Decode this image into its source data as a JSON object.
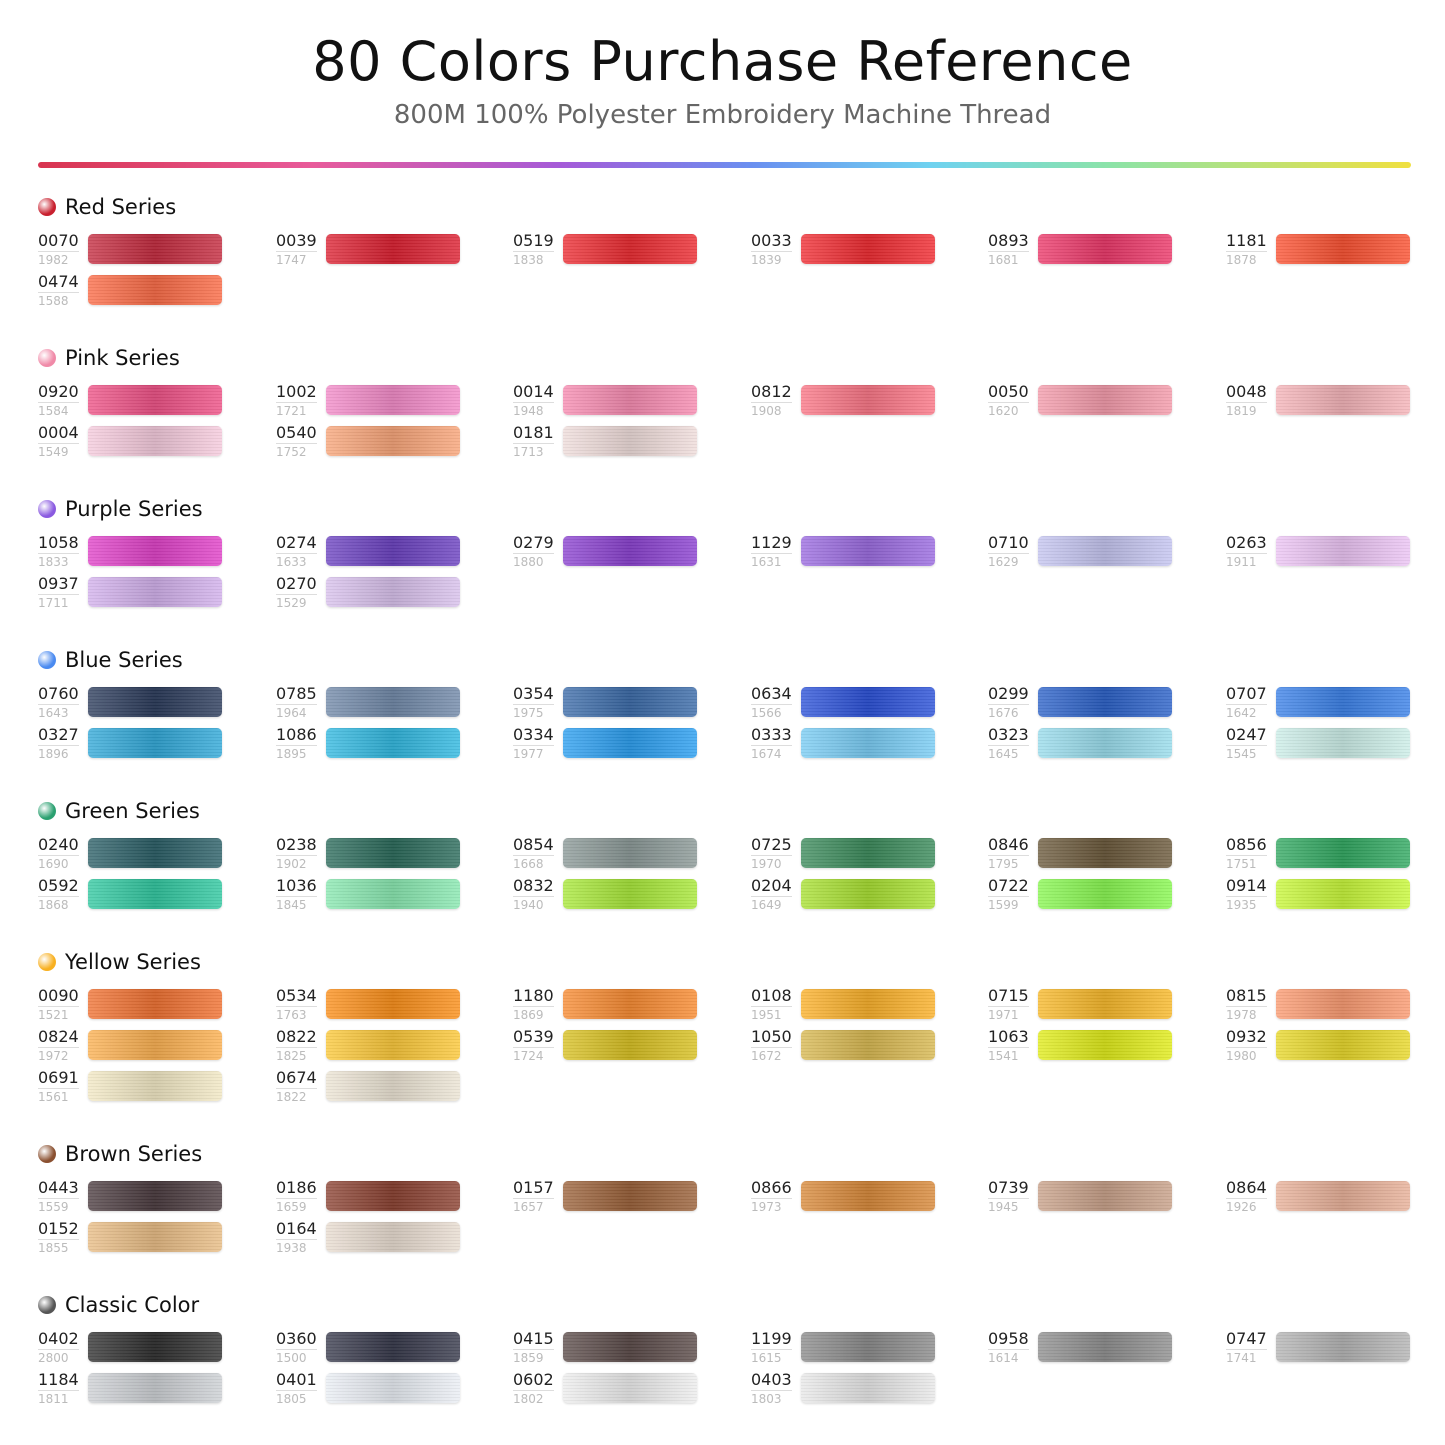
{
  "header": {
    "title": "80 Colors Purchase Reference",
    "subtitle": "800M 100% Polyester Embroidery Machine Thread"
  },
  "sections": [
    {
      "title": "Red Series",
      "dot_color": "#c8202f",
      "columns": [
        [
          {
            "code": "0070",
            "sub": "1982",
            "color": "#c42a3e"
          },
          {
            "code": "0474",
            "sub": "1588",
            "color": "#fb6a45"
          }
        ],
        [
          {
            "code": "0039",
            "sub": "1747",
            "color": "#dc1f30"
          }
        ],
        [
          {
            "code": "0519",
            "sub": "1838",
            "color": "#ec2a30"
          }
        ],
        [
          {
            "code": "0033",
            "sub": "1839",
            "color": "#f02a30"
          }
        ],
        [
          {
            "code": "0893",
            "sub": "1681",
            "color": "#ec3668"
          }
        ],
        [
          {
            "code": "1181",
            "sub": "1878",
            "color": "#fb5030"
          }
        ]
      ]
    },
    {
      "title": "Pink Series",
      "dot_color": "#f08aa8",
      "columns": [
        [
          {
            "code": "0920",
            "sub": "1584",
            "color": "#ee5085"
          },
          {
            "code": "0004",
            "sub": "1549",
            "color": "#f5cadc"
          }
        ],
        [
          {
            "code": "1002",
            "sub": "1721",
            "color": "#f38ac8"
          },
          {
            "code": "0540",
            "sub": "1752",
            "color": "#f8a478"
          }
        ],
        [
          {
            "code": "0014",
            "sub": "1948",
            "color": "#f78ab0"
          },
          {
            "code": "0181",
            "sub": "1713",
            "color": "#efdcda"
          }
        ],
        [
          {
            "code": "0812",
            "sub": "1908",
            "color": "#fa7585"
          }
        ],
        [
          {
            "code": "0050",
            "sub": "1620",
            "color": "#f49aaa"
          }
        ],
        [
          {
            "code": "0048",
            "sub": "1819",
            "color": "#f5b3b8"
          }
        ]
      ]
    },
    {
      "title": "Purple Series",
      "dot_color": "#8a5ae0",
      "columns": [
        [
          {
            "code": "1058",
            "sub": "1833",
            "color": "#e040c8"
          },
          {
            "code": "0937",
            "sub": "1711",
            "color": "#d2b0ec"
          }
        ],
        [
          {
            "code": "0274",
            "sub": "1633",
            "color": "#6a40c0"
          },
          {
            "code": "0270",
            "sub": "1529",
            "color": "#d8c0ec"
          }
        ],
        [
          {
            "code": "0279",
            "sub": "1880",
            "color": "#8a40d0"
          }
        ],
        [
          {
            "code": "1129",
            "sub": "1631",
            "color": "#9a6ae0"
          }
        ],
        [
          {
            "code": "0710",
            "sub": "1629",
            "color": "#c4c4f0"
          }
        ],
        [
          {
            "code": "0263",
            "sub": "1911",
            "color": "#ecc4f4"
          }
        ]
      ]
    },
    {
      "title": "Blue Series",
      "dot_color": "#4a8af0",
      "columns": [
        [
          {
            "code": "0760",
            "sub": "1643",
            "color": "#2a3a5a"
          },
          {
            "code": "0327",
            "sub": "1896",
            "color": "#30a8d8"
          }
        ],
        [
          {
            "code": "0785",
            "sub": "1964",
            "color": "#7088a8"
          },
          {
            "code": "1086",
            "sub": "1895",
            "color": "#30b8e0"
          }
        ],
        [
          {
            "code": "0354",
            "sub": "1975",
            "color": "#3a6aa8"
          },
          {
            "code": "0334",
            "sub": "1977",
            "color": "#2a9ef0"
          }
        ],
        [
          {
            "code": "0634",
            "sub": "1566",
            "color": "#2a50d8"
          },
          {
            "code": "0333",
            "sub": "1674",
            "color": "#78ccf4"
          }
        ],
        [
          {
            "code": "0299",
            "sub": "1676",
            "color": "#2a60c8"
          },
          {
            "code": "0323",
            "sub": "1645",
            "color": "#98dcec"
          }
        ],
        [
          {
            "code": "0707",
            "sub": "1642",
            "color": "#3a80e8"
          },
          {
            "code": "0247",
            "sub": "1545",
            "color": "#cceee8"
          }
        ]
      ]
    },
    {
      "title": "Green Series",
      "dot_color": "#2aa070",
      "columns": [
        [
          {
            "code": "0240",
            "sub": "1690",
            "color": "#2a5e66"
          },
          {
            "code": "0592",
            "sub": "1868",
            "color": "#30c8a0"
          }
        ],
        [
          {
            "code": "0238",
            "sub": "1902",
            "color": "#2a6a5a"
          },
          {
            "code": "1036",
            "sub": "1845",
            "color": "#88e8b0"
          }
        ],
        [
          {
            "code": "0854",
            "sub": "1668",
            "color": "#8a9896"
          },
          {
            "code": "0832",
            "sub": "1940",
            "color": "#a8e838"
          }
        ],
        [
          {
            "code": "0725",
            "sub": "1970",
            "color": "#3a8a5a"
          },
          {
            "code": "0204",
            "sub": "1649",
            "color": "#a8e030"
          }
        ],
        [
          {
            "code": "0846",
            "sub": "1795",
            "color": "#6a583a"
          },
          {
            "code": "0722",
            "sub": "1599",
            "color": "#88f850"
          }
        ],
        [
          {
            "code": "0856",
            "sub": "1751",
            "color": "#30a860"
          },
          {
            "code": "0914",
            "sub": "1935",
            "color": "#c8f838"
          }
        ]
      ]
    },
    {
      "title": "Yellow Series",
      "dot_color": "#f8b020",
      "columns": [
        [
          {
            "code": "0090",
            "sub": "1521",
            "color": "#f07030"
          },
          {
            "code": "0824",
            "sub": "1972",
            "color": "#fcb050"
          },
          {
            "code": "0691",
            "sub": "1561",
            "color": "#f2e8c4"
          }
        ],
        [
          {
            "code": "0534",
            "sub": "1763",
            "color": "#fb8e18"
          },
          {
            "code": "0822",
            "sub": "1825",
            "color": "#fcc838"
          },
          {
            "code": "0674",
            "sub": "1822",
            "color": "#ece4d4"
          }
        ],
        [
          {
            "code": "1180",
            "sub": "1869",
            "color": "#f88a30"
          },
          {
            "code": "0539",
            "sub": "1724",
            "color": "#d8c020"
          }
        ],
        [
          {
            "code": "0108",
            "sub": "1951",
            "color": "#fbb028"
          },
          {
            "code": "1050",
            "sub": "1672",
            "color": "#d8b850"
          }
        ],
        [
          {
            "code": "0715",
            "sub": "1971",
            "color": "#f8b828"
          },
          {
            "code": "1063",
            "sub": "1541",
            "color": "#e0ec18"
          }
        ],
        [
          {
            "code": "0815",
            "sub": "1978",
            "color": "#fb9a70"
          },
          {
            "code": "0932",
            "sub": "1980",
            "color": "#e8d828"
          }
        ]
      ]
    },
    {
      "title": "Brown Series",
      "dot_color": "#8a5030",
      "columns": [
        [
          {
            "code": "0443",
            "sub": "1559",
            "color": "#4a3a3e"
          },
          {
            "code": "0152",
            "sub": "1855",
            "color": "#e8bc84"
          }
        ],
        [
          {
            "code": "0186",
            "sub": "1659",
            "color": "#8a4030"
          },
          {
            "code": "0164",
            "sub": "1938",
            "color": "#e8dcd0"
          }
        ],
        [
          {
            "code": "0157",
            "sub": "1657",
            "color": "#9a6038"
          }
        ],
        [
          {
            "code": "0866",
            "sub": "1973",
            "color": "#d88838"
          }
        ],
        [
          {
            "code": "0739",
            "sub": "1945",
            "color": "#c8a088"
          }
        ],
        [
          {
            "code": "0864",
            "sub": "1926",
            "color": "#e8b098"
          }
        ]
      ]
    },
    {
      "title": "Classic Color",
      "dot_color": "#555555",
      "columns": [
        [
          {
            "code": "0402",
            "sub": "2800",
            "color": "#2e2e2e"
          },
          {
            "code": "1184",
            "sub": "1811",
            "color": "#cdd0d4"
          }
        ],
        [
          {
            "code": "0360",
            "sub": "1500",
            "color": "#36384a"
          },
          {
            "code": "0401",
            "sub": "1805",
            "color": "#eaeef4"
          }
        ],
        [
          {
            "code": "0415",
            "sub": "1859",
            "color": "#5a4a48"
          },
          {
            "code": "0602",
            "sub": "1802",
            "color": "#ededed"
          }
        ],
        [
          {
            "code": "1199",
            "sub": "1615",
            "color": "#8a8a8a"
          },
          {
            "code": "0403",
            "sub": "1803",
            "color": "#e8e8e8"
          }
        ],
        [
          {
            "code": "0958",
            "sub": "1614",
            "color": "#8e8e8e"
          }
        ],
        [
          {
            "code": "0747",
            "sub": "1741",
            "color": "#b4b4b4"
          }
        ]
      ]
    }
  ]
}
